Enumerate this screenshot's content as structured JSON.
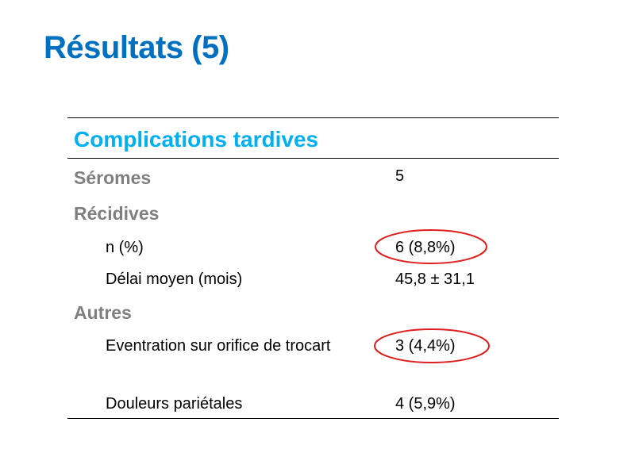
{
  "header": {
    "title": "Résultats (5)"
  },
  "table": {
    "title": "Complications tardives",
    "sections": [
      {
        "label": "Séromes",
        "value": "5"
      },
      {
        "label": "Récidives",
        "items": [
          {
            "label": "n (%)",
            "value": "6 (8,8%)"
          },
          {
            "label": "Délai moyen (mois)",
            "value": "45,8 ± 31,1"
          }
        ]
      },
      {
        "label": "Autres",
        "items": [
          {
            "label": "Eventration sur orifice de trocart",
            "value": "3 (4,4%)"
          },
          {
            "label": "Douleurs pariétales",
            "value": "4 (5,9%)"
          }
        ]
      }
    ]
  }
}
